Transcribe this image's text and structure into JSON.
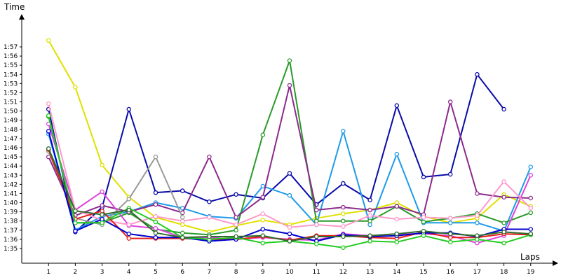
{
  "chart_data": {
    "type": "line",
    "ylabel": "Time",
    "xlabel": "Laps",
    "x_ticks": [
      1,
      2,
      3,
      4,
      5,
      6,
      7,
      8,
      9,
      10,
      11,
      12,
      13,
      14,
      15,
      16,
      17,
      18,
      19
    ],
    "y_tick_labels": [
      "1:35",
      "1:36",
      "1:37",
      "1:38",
      "1:39",
      "1:40",
      "1:41",
      "1:42",
      "1:43",
      "1:44",
      "1:45",
      "1:46",
      "1:47",
      "1:48",
      "1:49",
      "1:50",
      "1:51",
      "1:52",
      "1:53",
      "1:54",
      "1:55",
      "1:56",
      "1:57"
    ],
    "y_unit": "seconds",
    "xlim": [
      0,
      19.8
    ],
    "ylim": [
      94,
      158
    ],
    "grid": false,
    "legend": "none",
    "series": [
      {
        "color": "#e0e000",
        "values": [
          117.7,
          112.6,
          104.1,
          100.6,
          98.4,
          97.6,
          96.8,
          97.5,
          98.1,
          97.6,
          98.3,
          98.8,
          99.2,
          100.0,
          98.5,
          97.8,
          98.3,
          100.9,
          99.6
        ]
      },
      {
        "color": "#0a0aa8",
        "values": [
          110.2,
          96.8,
          99.5,
          110.2,
          101.1,
          101.3,
          100.1,
          100.9,
          100.5,
          103.2,
          99.8,
          102.1,
          100.3,
          110.6,
          102.8,
          103.1,
          114.0,
          110.2
        ]
      },
      {
        "color": "#1e9be8",
        "values": [
          107.5,
          97.0,
          98.5,
          99.0,
          100.0,
          99.4,
          98.5,
          98.3,
          101.8,
          100.8,
          97.6,
          107.8,
          97.6,
          105.3,
          97.8,
          97.8,
          97.8,
          96.9,
          103.9
        ]
      },
      {
        "color": "#2a9a2a",
        "values": [
          109.4,
          97.8,
          97.8,
          98.9,
          97.1,
          96.7,
          96.5,
          97.0,
          107.4,
          115.5,
          98.0,
          98.0,
          98.0,
          99.6,
          97.9,
          98.3,
          98.8,
          97.8,
          98.9
        ]
      },
      {
        "color": "#8c2a8c",
        "values": [
          105.0,
          98.6,
          99.7,
          99.0,
          99.8,
          98.9,
          105.0,
          98.4,
          100.6,
          112.8,
          99.2,
          99.5,
          99.2,
          99.6,
          98.7,
          111.0,
          101.0,
          100.6,
          100.5
        ]
      },
      {
        "color": "#dd44dd",
        "values": [
          108.6,
          99.2,
          101.2,
          97.5,
          97.2,
          96.2,
          96.2,
          96.0,
          96.2,
          96.0,
          95.9,
          96.6,
          96.4,
          96.6,
          96.6,
          96.4,
          95.6,
          96.4,
          103.0
        ]
      },
      {
        "color": "#ff99cc",
        "values": [
          110.8,
          99.2,
          98.1,
          97.6,
          98.5,
          98.0,
          98.4,
          97.6,
          98.8,
          97.3,
          97.6,
          97.4,
          98.6,
          98.2,
          98.4,
          98.3,
          98.6,
          102.3,
          99.4
        ]
      },
      {
        "color": "#999999",
        "values": [
          105.6,
          98.3,
          97.6,
          100.4,
          105.0,
          98.4
        ]
      },
      {
        "color": "#e61e1e",
        "values": [
          105.8,
          98.2,
          99.1,
          96.1,
          96.1,
          96.1,
          96.0,
          96.0,
          96.3,
          95.9,
          96.4,
          96.4,
          96.2,
          96.1,
          96.8,
          96.2,
          96.2,
          96.6,
          96.5
        ]
      },
      {
        "color": "#0000cc",
        "values": [
          107.8,
          96.9,
          98.2,
          96.6,
          96.2,
          96.2,
          95.8,
          96.0,
          97.1,
          96.6,
          95.8,
          96.5,
          96.3,
          96.4,
          96.7,
          96.7,
          96.3,
          97.1,
          97.1
        ]
      },
      {
        "color": "#22cc22",
        "values": [
          109.5,
          97.8,
          97.8,
          99.4,
          97.9,
          96.2,
          96.0,
          96.2,
          95.6,
          95.8,
          95.5,
          95.1,
          95.8,
          95.7,
          96.4,
          95.7,
          96.0,
          95.6,
          96.5
        ]
      },
      {
        "color": "#2f6b2f",
        "values": [
          105.9,
          99.1,
          98.7,
          99.2,
          96.7,
          96.2,
          96.3,
          96.3,
          96.4,
          95.8,
          96.3,
          96.3,
          96.4,
          96.6,
          96.9,
          96.6,
          96.4,
          96.8,
          96.6
        ]
      }
    ]
  }
}
